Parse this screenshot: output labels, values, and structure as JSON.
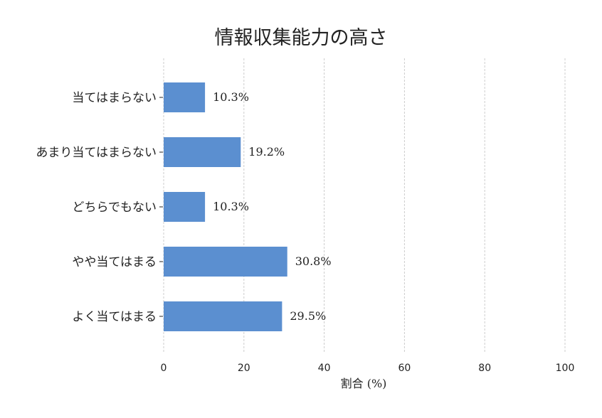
{
  "chart_data": {
    "type": "bar",
    "orientation": "horizontal",
    "title": "情報収集能力の高さ",
    "xlabel": "割合 (%)",
    "ylabel": "",
    "xlim": [
      0,
      100
    ],
    "xticks": [
      0,
      20,
      40,
      60,
      80,
      100
    ],
    "grid": "vertical-dashed",
    "categories": [
      "当てはまらない",
      "あまり当てはまらない",
      "どちらでもない",
      "やや当てはまる",
      "よく当てはまる"
    ],
    "values": [
      10.3,
      19.2,
      10.3,
      30.8,
      29.5
    ],
    "value_labels": [
      "10.3%",
      "19.2%",
      "10.3%",
      "30.8%",
      "29.5%"
    ],
    "bar_color": "#5b8fd0"
  }
}
